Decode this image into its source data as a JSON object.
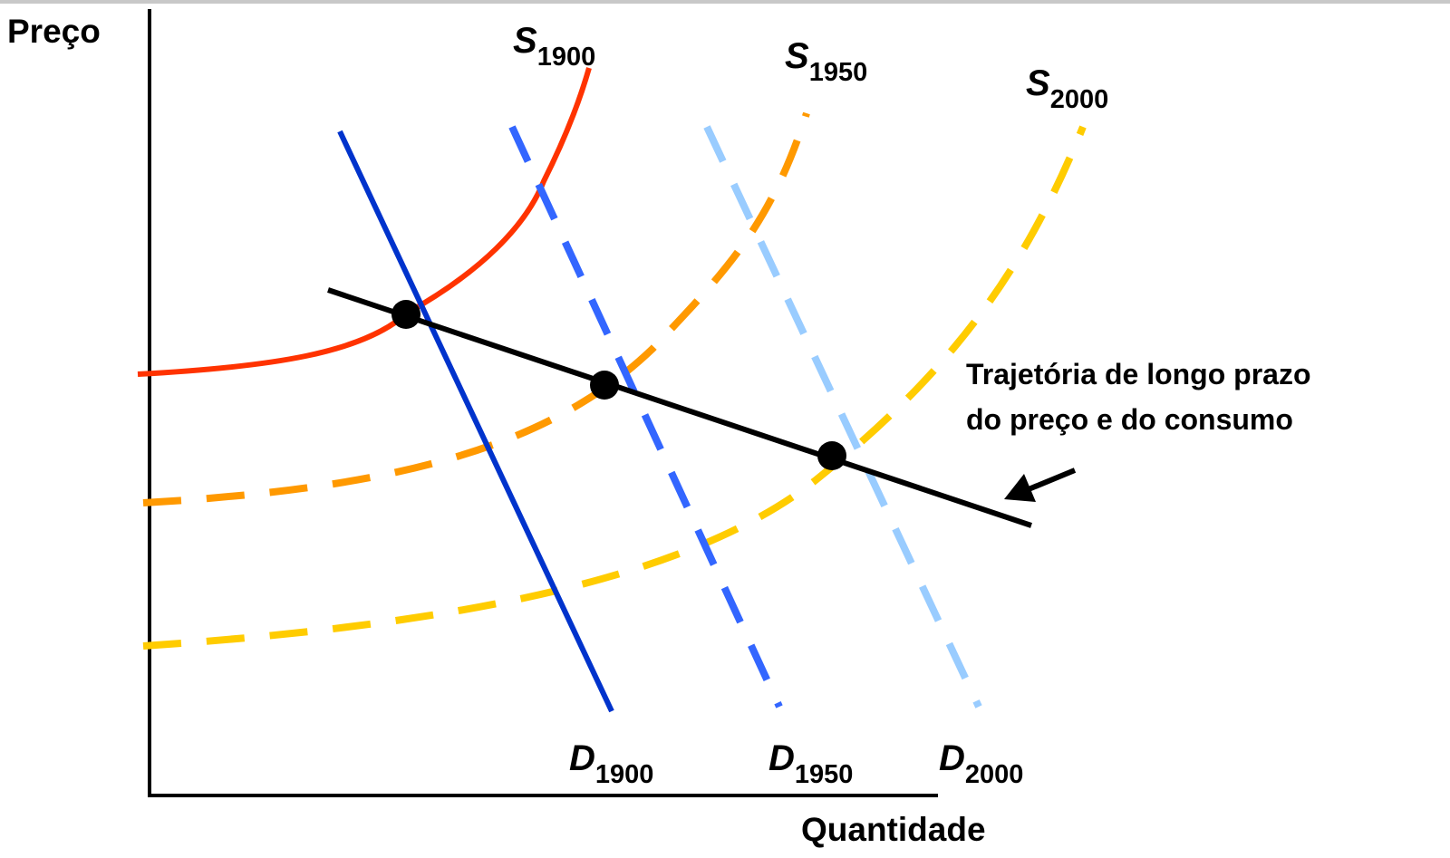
{
  "axes": {
    "y_label": "Preço",
    "x_label": "Quantidade"
  },
  "colors": {
    "axis": "#000000",
    "s1900": "#ff3300",
    "s1950": "#ff9900",
    "s2000": "#ffcc00",
    "d1900": "#0033cc",
    "d1950": "#3366ff",
    "d2000": "#99ccff",
    "path": "#000000",
    "equilibrium": "#000000"
  },
  "curves": {
    "s1900": {
      "letter": "S",
      "year": "1900",
      "style": "solid"
    },
    "s1950": {
      "letter": "S",
      "year": "1950",
      "style": "dashed"
    },
    "s2000": {
      "letter": "S",
      "year": "2000",
      "style": "dashed"
    },
    "d1900": {
      "letter": "D",
      "year": "1900",
      "style": "solid"
    },
    "d1950": {
      "letter": "D",
      "year": "1950",
      "style": "dashed"
    },
    "d2000": {
      "letter": "D",
      "year": "2000",
      "style": "dashed"
    }
  },
  "annotation": {
    "line1": "Trajetória de longo prazo",
    "line2": "do preço e do consumo"
  }
}
